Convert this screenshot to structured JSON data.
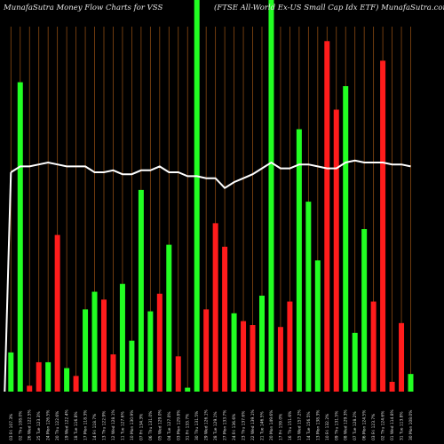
{
  "header": {
    "left": "MunafaSutra  Money Flow  Charts for VSS",
    "right": "(FTSE All-World Ex-US Small Cap Idx ETF) MunafaSutra.com"
  },
  "colors": {
    "background": "#000000",
    "grid": "#8a4a12",
    "up": "#22ff22",
    "down": "#ff1c1c",
    "line": "#ffffff"
  },
  "chart_data": {
    "type": "bar",
    "title": "",
    "xlabel": "",
    "ylabel": "",
    "ylim": [
      0,
      100
    ],
    "categories": [
      "03 Fri 107.3%",
      "02 Thu 108.0%",
      "26 Wed 122.5%",
      "25 Tue 123.3%",
      "24 Mon 126.5%",
      "20 Thu 122.6%",
      "19 Wed 122.4%",
      "18 Tue 116.8%",
      "17 Mon 118.3%",
      "14 Fri 118.7%",
      "13 Thu 122.9%",
      "12 Wed 128.1%",
      "11 Tue 127.6%",
      "10 Mon 130.9%",
      "07 Fri 134.3%",
      "06 Thu 131.0%",
      "05 Wed 129.0%",
      "04 Tue 127.0%",
      "03 Mon 129.8%",
      "31 Fri 133.7%",
      "30 Thu 131.5%",
      "29 Wed 126.1%",
      "28 Tue 129.1%",
      "27 Mon 133.7%",
      "24 Fri 136.6%",
      "23 Thu 137.6%",
      "22 Wed 139.1%",
      "21 Tue 146.5%",
      "20 Mon 149.6%",
      "17 Fri 159.0%",
      "16 Thu 151.6%",
      "15 Wed 157.2%",
      "14 Tue 156.5%",
      "13 Mon 138.3%",
      "10 Fri 132.2%",
      "09 Thu 131.5%",
      "08 Wed 129.3%",
      "07 Tue 128.2%",
      "06 Mon 124.5%",
      "03 Fri 123.7%",
      "02 Thu 124.6%",
      "01 Wed 114.8%",
      "31 Tue 113.8%",
      "30 Mon 108.0%"
    ],
    "series": [
      {
        "values": [
          10,
          79,
          1.5,
          7.5,
          7.5,
          40,
          6,
          4,
          21,
          25.5,
          23.5,
          9.5,
          27.5,
          13,
          51.5,
          20.5,
          25,
          37.5,
          9,
          1,
          100,
          21,
          43,
          37,
          20,
          18,
          17,
          24.5,
          100,
          16.5,
          23,
          67,
          48.5,
          33.5,
          89.5,
          72,
          78,
          15,
          41.5,
          23,
          84.5,
          2.5,
          17.5,
          4.5
        ],
        "direction": [
          "up",
          "up",
          "down",
          "down",
          "up",
          "down",
          "up",
          "down",
          "up",
          "up",
          "down",
          "down",
          "up",
          "up",
          "up",
          "up",
          "down",
          "up",
          "down",
          "up",
          "up",
          "down",
          "down",
          "down",
          "up",
          "down",
          "down",
          "up",
          "up",
          "down",
          "down",
          "up",
          "up",
          "up",
          "down",
          "down",
          "up",
          "up",
          "up",
          "down",
          "down",
          "down",
          "down",
          "up"
        ]
      },
      {
        "type": "line",
        "values": [
          56,
          57.5,
          57.5,
          58,
          58.5,
          58,
          57.5,
          57.5,
          57.5,
          56,
          56,
          56.5,
          55.5,
          55.5,
          56.5,
          56.5,
          57.5,
          56,
          56,
          55,
          55,
          54.5,
          54.5,
          52,
          53.5,
          54.5,
          55.5,
          57,
          58.5,
          57,
          57,
          58,
          58,
          57.5,
          57,
          57,
          58.5,
          59,
          58.5,
          58.5,
          58.5,
          58,
          58,
          57.5
        ]
      }
    ]
  }
}
